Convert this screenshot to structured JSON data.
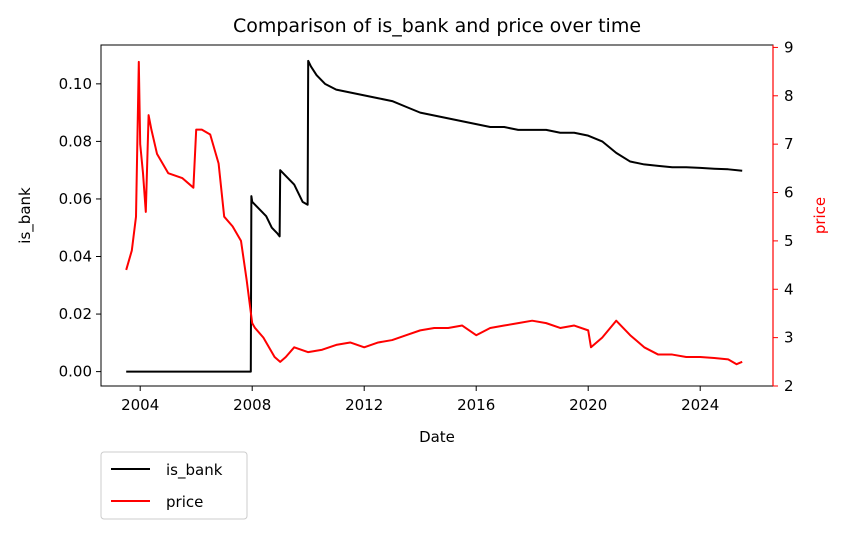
{
  "chart_data": {
    "type": "line",
    "title": "Comparison of is_bank and price over time",
    "xlabel": "Date",
    "ylabel_left": "is_bank",
    "ylabel_right": "price",
    "x_ticks": [
      "2004",
      "2008",
      "2012",
      "2016",
      "2020",
      "2024"
    ],
    "y_left_ticks": [
      "0.00",
      "0.02",
      "0.04",
      "0.06",
      "0.08",
      "0.10"
    ],
    "y_right_ticks": [
      "2",
      "3",
      "4",
      "5",
      "6",
      "7",
      "8",
      "9"
    ],
    "xlim": [
      2002.6,
      2026.6
    ],
    "ylim_left": [
      -0.005,
      0.1135
    ],
    "ylim_right": [
      2.0,
      9.05
    ],
    "grid": false,
    "legend_position": "bottom-left-outside",
    "colors": {
      "is_bank": "#000000",
      "price": "#ff0000",
      "right_axis": "#ff0000"
    },
    "series": [
      {
        "name": "is_bank",
        "axis": "left",
        "x": [
          2003.5,
          2005.0,
          2007.0,
          2007.95,
          2007.97,
          2008.0,
          2008.2,
          2008.5,
          2008.7,
          2008.9,
          2008.98,
          2009.0,
          2009.2,
          2009.5,
          2009.8,
          2009.98,
          2010.0,
          2010.1,
          2010.3,
          2010.6,
          2011.0,
          2011.5,
          2012.0,
          2012.5,
          2013.0,
          2013.5,
          2014.0,
          2014.5,
          2015.0,
          2015.5,
          2016.0,
          2016.5,
          2017.0,
          2017.5,
          2018.0,
          2018.5,
          2019.0,
          2019.5,
          2020.0,
          2020.5,
          2021.0,
          2021.5,
          2022.0,
          2022.5,
          2023.0,
          2023.5,
          2024.0,
          2024.5,
          2025.0,
          2025.5
        ],
        "y": [
          0.0,
          0.0,
          0.0,
          0.0,
          0.061,
          0.059,
          0.057,
          0.054,
          0.05,
          0.048,
          0.047,
          0.07,
          0.068,
          0.065,
          0.059,
          0.058,
          0.108,
          0.106,
          0.103,
          0.1,
          0.098,
          0.097,
          0.096,
          0.095,
          0.094,
          0.092,
          0.09,
          0.089,
          0.088,
          0.087,
          0.086,
          0.085,
          0.085,
          0.084,
          0.084,
          0.084,
          0.083,
          0.083,
          0.082,
          0.08,
          0.076,
          0.073,
          0.072,
          0.0715,
          0.071,
          0.071,
          0.0708,
          0.0705,
          0.0703,
          0.0698
        ]
      },
      {
        "name": "price",
        "axis": "right",
        "x": [
          2003.5,
          2003.7,
          2003.85,
          2003.95,
          2004.0,
          2004.1,
          2004.2,
          2004.3,
          2004.4,
          2004.6,
          2004.8,
          2005.0,
          2005.5,
          2005.9,
          2006.0,
          2006.2,
          2006.5,
          2006.8,
          2007.0,
          2007.3,
          2007.6,
          2007.8,
          2008.0,
          2008.1,
          2008.4,
          2008.8,
          2009.0,
          2009.2,
          2009.5,
          2010.0,
          2010.5,
          2011.0,
          2011.5,
          2012.0,
          2012.5,
          2013.0,
          2013.5,
          2014.0,
          2014.5,
          2015.0,
          2015.5,
          2016.0,
          2016.5,
          2017.0,
          2017.5,
          2018.0,
          2018.5,
          2019.0,
          2019.5,
          2020.0,
          2020.1,
          2020.5,
          2021.0,
          2021.5,
          2022.0,
          2022.5,
          2023.0,
          2023.5,
          2024.0,
          2024.5,
          2025.0,
          2025.3,
          2025.5
        ],
        "y": [
          4.4,
          4.8,
          5.5,
          8.7,
          7.0,
          6.4,
          5.6,
          7.6,
          7.3,
          6.8,
          6.6,
          6.4,
          6.3,
          6.1,
          7.3,
          7.3,
          7.2,
          6.6,
          5.5,
          5.3,
          5.0,
          4.2,
          3.3,
          3.2,
          3.0,
          2.6,
          2.5,
          2.6,
          2.8,
          2.7,
          2.75,
          2.85,
          2.9,
          2.8,
          2.9,
          2.95,
          3.05,
          3.15,
          3.2,
          3.2,
          3.25,
          3.05,
          3.2,
          3.25,
          3.3,
          3.35,
          3.3,
          3.2,
          3.25,
          3.15,
          2.8,
          3.0,
          3.35,
          3.05,
          2.8,
          2.65,
          2.65,
          2.6,
          2.6,
          2.58,
          2.55,
          2.45,
          2.5
        ]
      }
    ]
  }
}
